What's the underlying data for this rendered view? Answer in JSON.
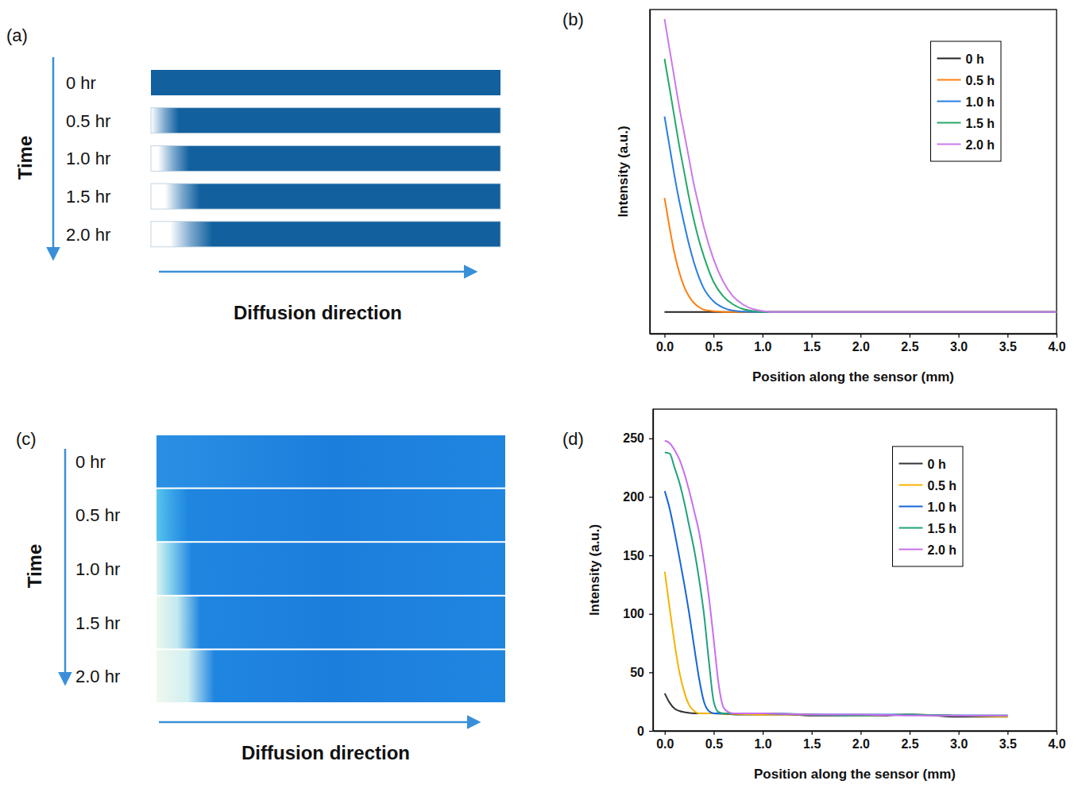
{
  "chart_data": [
    {
      "type": "line",
      "panel_label": "(b)",
      "x_label": "Position along the sensor (mm)",
      "y_label": "Intensity (a.u.)",
      "xlim": [
        -0.15,
        4.0
      ],
      "ylim": [
        0,
        100
      ],
      "xticks": [
        {
          "value": 0,
          "label": "0.0"
        },
        0.5,
        {
          "value": 1,
          "label": "1.0"
        },
        1.5,
        {
          "value": 2,
          "label": "2.0"
        },
        2.5,
        {
          "value": 3,
          "label": "3.0"
        },
        3.5,
        {
          "value": 4,
          "label": "4.0"
        }
      ],
      "tick_labels": "x",
      "legend": "upper right",
      "series": [
        {
          "name": "0 h",
          "color": "#222222",
          "x": [
            0,
            4.0
          ],
          "values": [
            6.7,
            6.7
          ]
        },
        {
          "name": "0.5 h",
          "color": "#ff7f0e",
          "x": [
            0,
            0.05,
            0.1,
            0.15,
            0.2,
            0.25,
            0.3,
            0.35,
            0.4,
            0.5,
            0.6,
            4.0
          ],
          "values": [
            41.9,
            33,
            25,
            19,
            14.5,
            11.5,
            9.5,
            8.2,
            7.4,
            6.9,
            6.7,
            6.7
          ]
        },
        {
          "name": "1.0 h",
          "color": "#2a7de1",
          "x": [
            0,
            0.05,
            0.1,
            0.15,
            0.2,
            0.25,
            0.3,
            0.35,
            0.4,
            0.5,
            0.6,
            0.7,
            0.8,
            0.9,
            4.0
          ],
          "values": [
            67,
            58,
            49,
            41,
            34,
            27.5,
            22,
            17.5,
            14,
            10,
            8,
            7.1,
            6.8,
            6.7,
            6.7
          ]
        },
        {
          "name": "1.5 h",
          "color": "#24a86a",
          "x": [
            0,
            0.05,
            0.1,
            0.15,
            0.2,
            0.25,
            0.3,
            0.35,
            0.4,
            0.5,
            0.6,
            0.7,
            0.8,
            0.9,
            1.0,
            4.0
          ],
          "values": [
            84.8,
            76,
            67,
            58,
            50,
            42,
            35,
            29,
            24,
            16,
            11.5,
            9,
            7.6,
            7,
            6.7,
            6.7
          ]
        },
        {
          "name": "2.0 h",
          "color": "#cc79e8",
          "x": [
            0,
            0.05,
            0.1,
            0.15,
            0.2,
            0.25,
            0.3,
            0.35,
            0.4,
            0.5,
            0.6,
            0.7,
            0.8,
            0.9,
            1.0,
            1.1,
            4.0
          ],
          "values": [
            97.1,
            88,
            79,
            70,
            62,
            54,
            46,
            39.5,
            33,
            23,
            16,
            11.5,
            9,
            7.6,
            7,
            6.7,
            6.7
          ]
        }
      ]
    },
    {
      "type": "line",
      "panel_label": "(d)",
      "x_label": "Position along the sensor (mm)",
      "y_label": "Intensity (a.u.)",
      "xlim": [
        -0.12,
        4.0
      ],
      "ylim": [
        0,
        275
      ],
      "xticks": [
        {
          "value": 0,
          "label": "0.0"
        },
        0.5,
        {
          "value": 1,
          "label": "1.0"
        },
        1.5,
        {
          "value": 2,
          "label": "2.0"
        },
        2.5,
        {
          "value": 3,
          "label": "3.0"
        },
        3.5,
        {
          "value": 4,
          "label": "4.0"
        }
      ],
      "yticks": [
        0,
        50,
        100,
        150,
        200,
        250
      ],
      "legend": "upper right",
      "series": [
        {
          "name": "0 h",
          "color": "#333333",
          "x": [
            0,
            0.05,
            0.1,
            0.15,
            0.2,
            0.3,
            0.5,
            0.75,
            1.0,
            1.25,
            1.5,
            1.75,
            2.0,
            2.25,
            2.5,
            2.75,
            3.0,
            3.25,
            3.5
          ],
          "values": [
            32,
            24,
            19,
            17,
            16,
            15,
            15,
            14,
            14,
            14,
            13,
            13,
            13,
            13,
            14,
            13,
            12,
            12,
            12
          ]
        },
        {
          "name": "0.5 h",
          "color": "#f5b400",
          "x": [
            0,
            0.05,
            0.1,
            0.15,
            0.2,
            0.25,
            0.3,
            0.35,
            0.5,
            1.0,
            1.5,
            2.0,
            2.5,
            3.0,
            3.5
          ],
          "values": [
            136,
            105,
            75,
            50,
            33,
            22,
            17,
            15,
            15,
            14,
            14,
            13,
            14,
            13,
            12
          ]
        },
        {
          "name": "1.0 h",
          "color": "#1565d8",
          "x": [
            0,
            0.05,
            0.1,
            0.15,
            0.2,
            0.25,
            0.3,
            0.35,
            0.4,
            0.45,
            0.5,
            1.0,
            1.5,
            2.0,
            2.5,
            3.0,
            3.5
          ],
          "values": [
            205,
            190,
            170,
            148,
            125,
            100,
            72,
            45,
            25,
            17,
            15,
            15,
            14,
            14,
            14,
            13,
            13
          ]
        },
        {
          "name": "1.5 h",
          "color": "#20a27a",
          "x": [
            0,
            0.05,
            0.1,
            0.15,
            0.2,
            0.25,
            0.3,
            0.35,
            0.4,
            0.45,
            0.5,
            0.55,
            0.6,
            1.0,
            1.5,
            2.0,
            2.5,
            3.0,
            3.5
          ],
          "values": [
            238,
            237,
            225,
            212,
            195,
            175,
            155,
            130,
            100,
            60,
            25,
            16,
            15,
            15,
            14,
            13,
            14,
            13,
            13
          ]
        },
        {
          "name": "2.0 h",
          "color": "#c86ef0",
          "x": [
            0,
            0.05,
            0.1,
            0.15,
            0.2,
            0.25,
            0.3,
            0.35,
            0.4,
            0.45,
            0.5,
            0.55,
            0.6,
            0.65,
            0.7,
            1.0,
            1.5,
            2.0,
            2.5,
            3.0,
            3.5
          ],
          "values": [
            248,
            246,
            240,
            232,
            220,
            205,
            188,
            170,
            145,
            115,
            78,
            40,
            20,
            16,
            15,
            15,
            14,
            14,
            13,
            13,
            13
          ]
        }
      ]
    }
  ],
  "diagrams": [
    {
      "kind": "schematic",
      "panel_label": "(a)",
      "time_label": "Time",
      "direction_label": "Diffusion direction",
      "rows": [
        "0 hr",
        "0.5 hr",
        "1.0 hr",
        "1.5 hr",
        "2.0 hr"
      ]
    },
    {
      "kind": "photo",
      "panel_label": "(c)",
      "time_label": "Time",
      "direction_label": "Diffusion direction",
      "rows": [
        "0 hr",
        "0.5 hr",
        "1.0 hr",
        "1.5 hr",
        "2.0 hr"
      ]
    }
  ]
}
